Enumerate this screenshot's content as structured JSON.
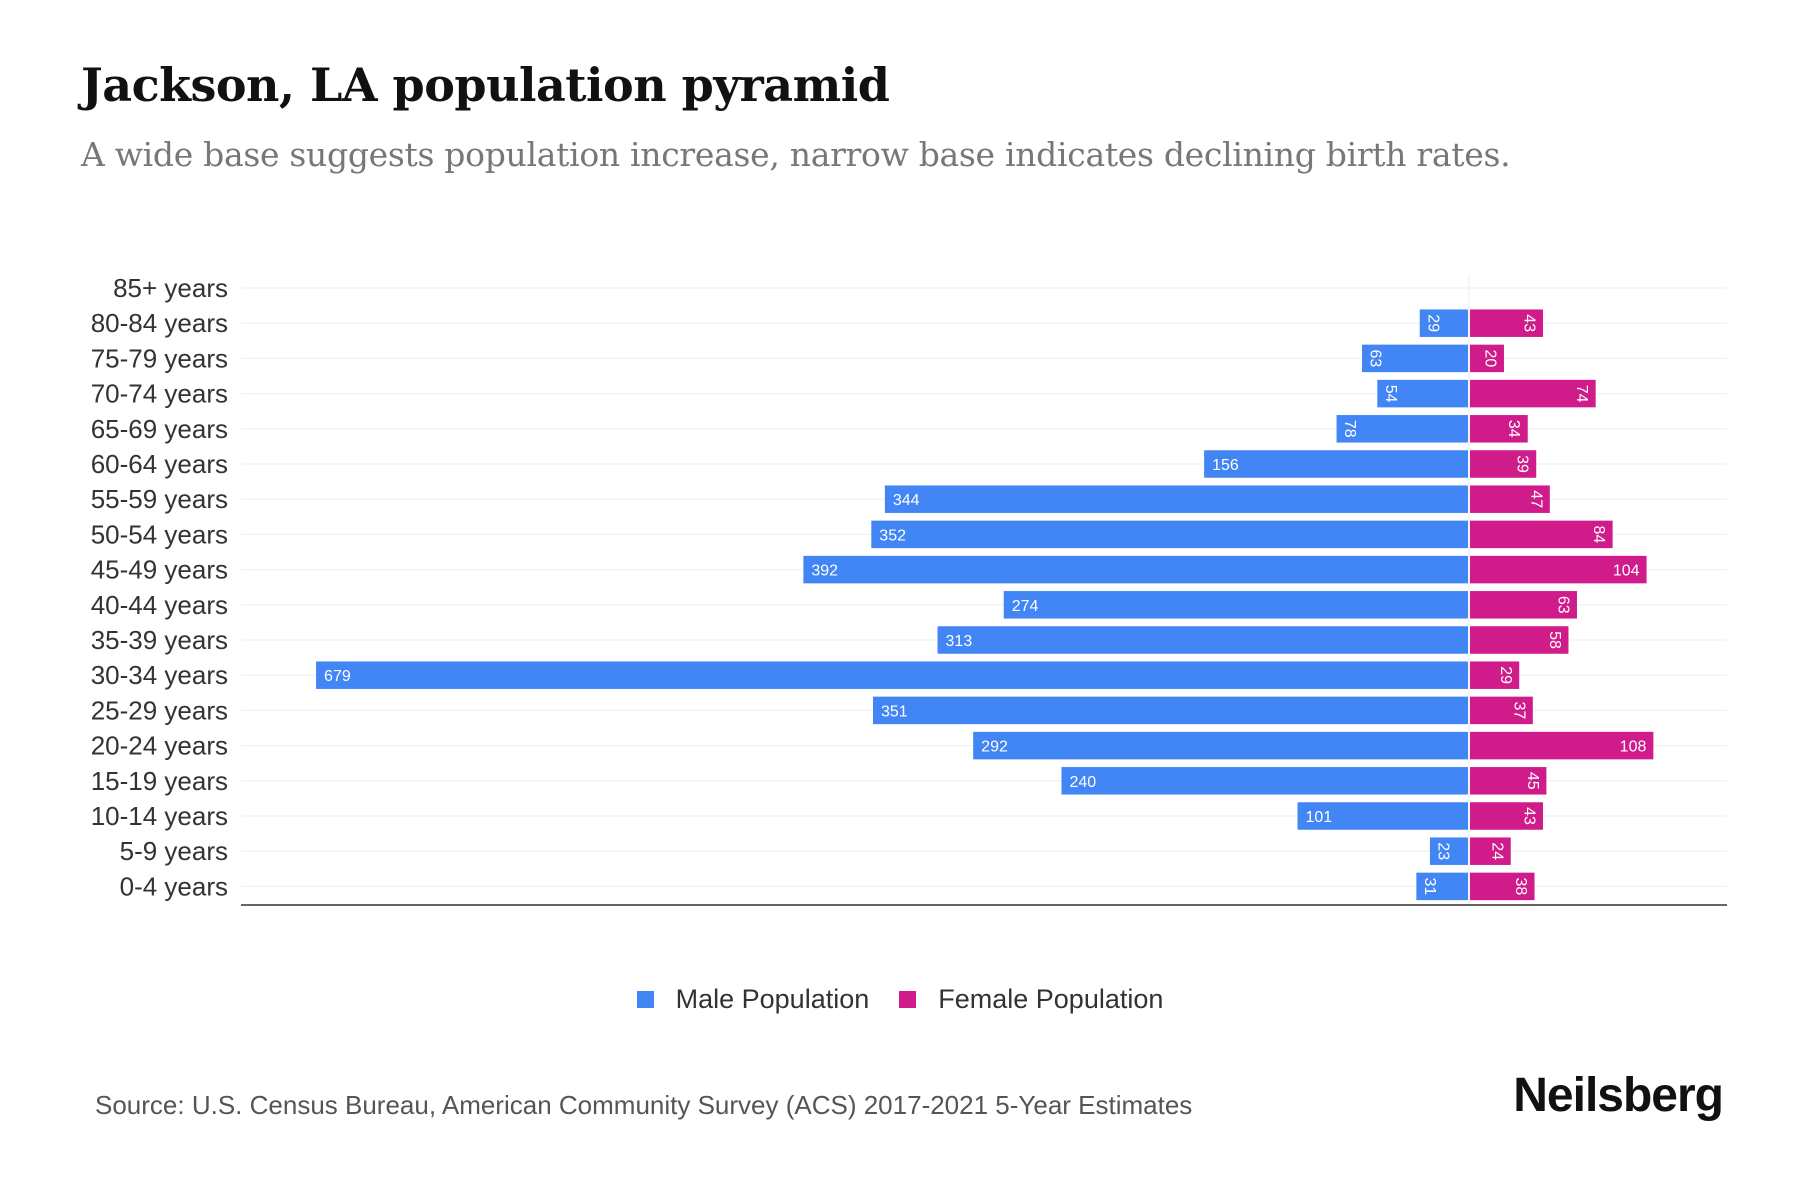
{
  "chart_data": {
    "type": "bar",
    "orientation": "horizontal-pyramid",
    "title": "Jackson, LA population pyramid",
    "subtitle": "A wide base suggests population increase, narrow base indicates declining birth rates.",
    "categories": [
      "85+ years",
      "80-84 years",
      "75-79 years",
      "70-74 years",
      "65-69 years",
      "60-64 years",
      "55-59 years",
      "50-54 years",
      "45-49 years",
      "40-44 years",
      "35-39 years",
      "30-34 years",
      "25-29 years",
      "20-24 years",
      "15-19 years",
      "10-14 years",
      "5-9 years",
      "0-4 years"
    ],
    "series": [
      {
        "name": "Male Population",
        "color": "#4285f4",
        "values": [
          0,
          29,
          63,
          54,
          78,
          156,
          344,
          352,
          392,
          274,
          313,
          679,
          351,
          292,
          240,
          101,
          23,
          31
        ]
      },
      {
        "name": "Female Population",
        "color": "#d01c8b",
        "values": [
          0,
          43,
          20,
          74,
          34,
          39,
          47,
          84,
          104,
          63,
          58,
          29,
          37,
          108,
          45,
          43,
          24,
          38
        ]
      }
    ],
    "xlim": [
      -720,
      152
    ],
    "grid": true,
    "legend": "bottom-center"
  },
  "source": "Source: U.S. Census Bureau, American Community Survey (ACS) 2017-2021 5-Year Estimates",
  "logo": "Neilsberg"
}
